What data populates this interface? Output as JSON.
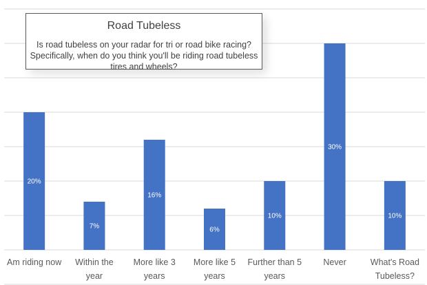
{
  "chart_data": {
    "type": "bar",
    "title": "Road Tubeless",
    "subtitle": "Is road tubeless on your radar for tri or road bike racing? Specifically, when do you think you'll be riding road tubeless tires and wheels?",
    "categories": [
      [
        "Am riding now"
      ],
      [
        "Within the",
        "year"
      ],
      [
        "More like 3",
        "years"
      ],
      [
        "More like 5",
        "years"
      ],
      [
        "Further than 5",
        "years"
      ],
      [
        "Never"
      ],
      [
        "What's Road",
        "Tubeless?"
      ]
    ],
    "values": [
      20,
      7,
      16,
      6,
      10,
      30,
      10
    ],
    "data_labels": [
      "20%",
      "7%",
      "16%",
      "6%",
      "10%",
      "30%",
      "10%"
    ],
    "ylim": [
      0,
      35
    ],
    "ytick_step": 5,
    "grid": true,
    "legend": "none",
    "colors": {
      "bar": "#4472C4",
      "grid": "#D9D9D9"
    }
  }
}
